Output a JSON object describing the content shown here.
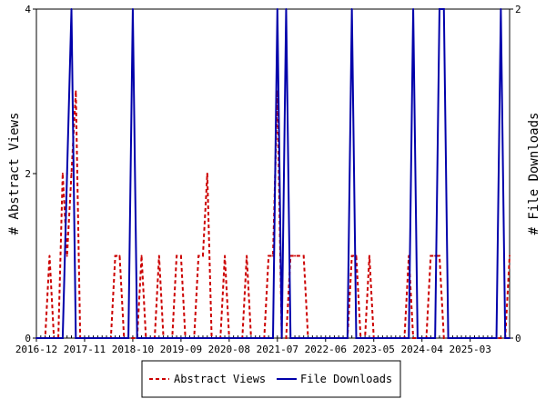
{
  "chart_data": {
    "type": "line",
    "x_tick_labels": [
      "2016-12",
      "2017-11",
      "2018-10",
      "2019-09",
      "2020-08",
      "2021-07",
      "2022-06",
      "2023-05",
      "2024-04",
      "2025-03"
    ],
    "left_axis": {
      "label": "# Abstract Views",
      "ylim": [
        0,
        4
      ],
      "tick_labels": [
        "0",
        "2",
        "4"
      ]
    },
    "right_axis": {
      "label": "# File Downloads",
      "ylim": [
        0,
        2
      ],
      "tick_labels": [
        "0",
        "2"
      ]
    },
    "grid": false,
    "legend_position": "bottom",
    "series": [
      {
        "name": "Abstract Views",
        "axis": "left",
        "color": "#cc0000",
        "dash": true,
        "points": [
          [
            0,
            0
          ],
          [
            2,
            0
          ],
          [
            3,
            1
          ],
          [
            4,
            0
          ],
          [
            5,
            0
          ],
          [
            6,
            2
          ],
          [
            7,
            1
          ],
          [
            8,
            2
          ],
          [
            9,
            3
          ],
          [
            10,
            0
          ],
          [
            11,
            0
          ],
          [
            12,
            0
          ],
          [
            13,
            0
          ],
          [
            14,
            0
          ],
          [
            15,
            0
          ],
          [
            16,
            0
          ],
          [
            17,
            0
          ],
          [
            18,
            1
          ],
          [
            19,
            1
          ],
          [
            20,
            0
          ],
          [
            21,
            0
          ],
          [
            22,
            0
          ],
          [
            23,
            0
          ],
          [
            24,
            1
          ],
          [
            25,
            0
          ],
          [
            26,
            0
          ],
          [
            27,
            0
          ],
          [
            28,
            1
          ],
          [
            29,
            0
          ],
          [
            30,
            0
          ],
          [
            31,
            0
          ],
          [
            32,
            1
          ],
          [
            33,
            1
          ],
          [
            34,
            0
          ],
          [
            35,
            0
          ],
          [
            36,
            0
          ],
          [
            37,
            1
          ],
          [
            38,
            1
          ],
          [
            39,
            2
          ],
          [
            40,
            0
          ],
          [
            41,
            0
          ],
          [
            42,
            0
          ],
          [
            43,
            1
          ],
          [
            44,
            0
          ],
          [
            45,
            0
          ],
          [
            46,
            0
          ],
          [
            47,
            0
          ],
          [
            48,
            1
          ],
          [
            49,
            0
          ],
          [
            50,
            0
          ],
          [
            51,
            0
          ],
          [
            52,
            0
          ],
          [
            53,
            1
          ],
          [
            54,
            1
          ],
          [
            55,
            3
          ],
          [
            56,
            0
          ],
          [
            57,
            0
          ],
          [
            58,
            1
          ],
          [
            59,
            1
          ],
          [
            60,
            1
          ],
          [
            61,
            1
          ],
          [
            62,
            0
          ],
          [
            63,
            0
          ],
          [
            64,
            0
          ],
          [
            65,
            0
          ],
          [
            66,
            0
          ],
          [
            67,
            0
          ],
          [
            68,
            0
          ],
          [
            69,
            0
          ],
          [
            70,
            0
          ],
          [
            71,
            0
          ],
          [
            72,
            1
          ],
          [
            73,
            1
          ],
          [
            74,
            0
          ],
          [
            75,
            0
          ],
          [
            76,
            1
          ],
          [
            77,
            0
          ],
          [
            78,
            0
          ],
          [
            79,
            0
          ],
          [
            80,
            0
          ],
          [
            81,
            0
          ],
          [
            82,
            0
          ],
          [
            83,
            0
          ],
          [
            84,
            0
          ],
          [
            85,
            1
          ],
          [
            86,
            0
          ],
          [
            87,
            0
          ],
          [
            88,
            0
          ],
          [
            89,
            0
          ],
          [
            90,
            1
          ],
          [
            91,
            1
          ],
          [
            92,
            1
          ],
          [
            93,
            0
          ],
          [
            94,
            0
          ],
          [
            95,
            0
          ],
          [
            96,
            0
          ],
          [
            97,
            0
          ],
          [
            98,
            0
          ],
          [
            99,
            0
          ],
          [
            100,
            0
          ],
          [
            101,
            0
          ],
          [
            102,
            0
          ],
          [
            103,
            0
          ],
          [
            104,
            0
          ],
          [
            105,
            0
          ],
          [
            106,
            0
          ],
          [
            107,
            0
          ],
          [
            108,
            1
          ]
        ]
      },
      {
        "name": "File Downloads",
        "axis": "right",
        "color": "#0000aa",
        "dash": false,
        "points": [
          [
            0,
            0
          ],
          [
            6,
            0
          ],
          [
            7,
            1
          ],
          [
            8,
            2
          ],
          [
            9,
            0
          ],
          [
            10,
            0
          ],
          [
            11,
            0
          ],
          [
            12,
            0
          ],
          [
            13,
            0
          ],
          [
            14,
            0
          ],
          [
            15,
            0
          ],
          [
            16,
            0
          ],
          [
            17,
            0
          ],
          [
            18,
            0
          ],
          [
            19,
            0
          ],
          [
            20,
            0
          ],
          [
            21,
            0
          ],
          [
            22,
            2
          ],
          [
            23,
            0
          ],
          [
            24,
            0
          ],
          [
            25,
            0
          ],
          [
            26,
            0
          ],
          [
            27,
            0
          ],
          [
            28,
            0
          ],
          [
            29,
            0
          ],
          [
            30,
            0
          ],
          [
            31,
            0
          ],
          [
            32,
            0
          ],
          [
            33,
            0
          ],
          [
            34,
            0
          ],
          [
            35,
            0
          ],
          [
            36,
            0
          ],
          [
            37,
            0
          ],
          [
            38,
            0
          ],
          [
            39,
            0
          ],
          [
            40,
            0
          ],
          [
            41,
            0
          ],
          [
            42,
            0
          ],
          [
            43,
            0
          ],
          [
            44,
            0
          ],
          [
            45,
            0
          ],
          [
            46,
            0
          ],
          [
            47,
            0
          ],
          [
            48,
            0
          ],
          [
            49,
            0
          ],
          [
            50,
            0
          ],
          [
            51,
            0
          ],
          [
            52,
            0
          ],
          [
            53,
            0
          ],
          [
            54,
            0
          ],
          [
            55,
            2
          ],
          [
            56,
            0
          ],
          [
            57,
            2
          ],
          [
            58,
            0
          ],
          [
            59,
            0
          ],
          [
            60,
            0
          ],
          [
            61,
            0
          ],
          [
            62,
            0
          ],
          [
            63,
            0
          ],
          [
            64,
            0
          ],
          [
            65,
            0
          ],
          [
            66,
            0
          ],
          [
            67,
            0
          ],
          [
            68,
            0
          ],
          [
            69,
            0
          ],
          [
            70,
            0
          ],
          [
            71,
            0
          ],
          [
            72,
            2
          ],
          [
            73,
            0
          ],
          [
            74,
            0
          ],
          [
            75,
            0
          ],
          [
            76,
            0
          ],
          [
            77,
            0
          ],
          [
            78,
            0
          ],
          [
            79,
            0
          ],
          [
            80,
            0
          ],
          [
            81,
            0
          ],
          [
            82,
            0
          ],
          [
            83,
            0
          ],
          [
            84,
            0
          ],
          [
            85,
            0
          ],
          [
            86,
            2
          ],
          [
            87,
            0
          ],
          [
            88,
            0
          ],
          [
            89,
            0
          ],
          [
            90,
            0
          ],
          [
            91,
            0
          ],
          [
            92,
            2
          ],
          [
            93,
            2
          ],
          [
            94,
            0
          ],
          [
            95,
            0
          ],
          [
            96,
            0
          ],
          [
            97,
            0
          ],
          [
            98,
            0
          ],
          [
            99,
            0
          ],
          [
            100,
            0
          ],
          [
            101,
            0
          ],
          [
            102,
            0
          ],
          [
            103,
            0
          ],
          [
            104,
            0
          ],
          [
            105,
            0
          ],
          [
            106,
            2
          ],
          [
            107,
            0
          ],
          [
            108,
            0
          ]
        ]
      }
    ],
    "xlim": [
      0,
      108
    ]
  }
}
